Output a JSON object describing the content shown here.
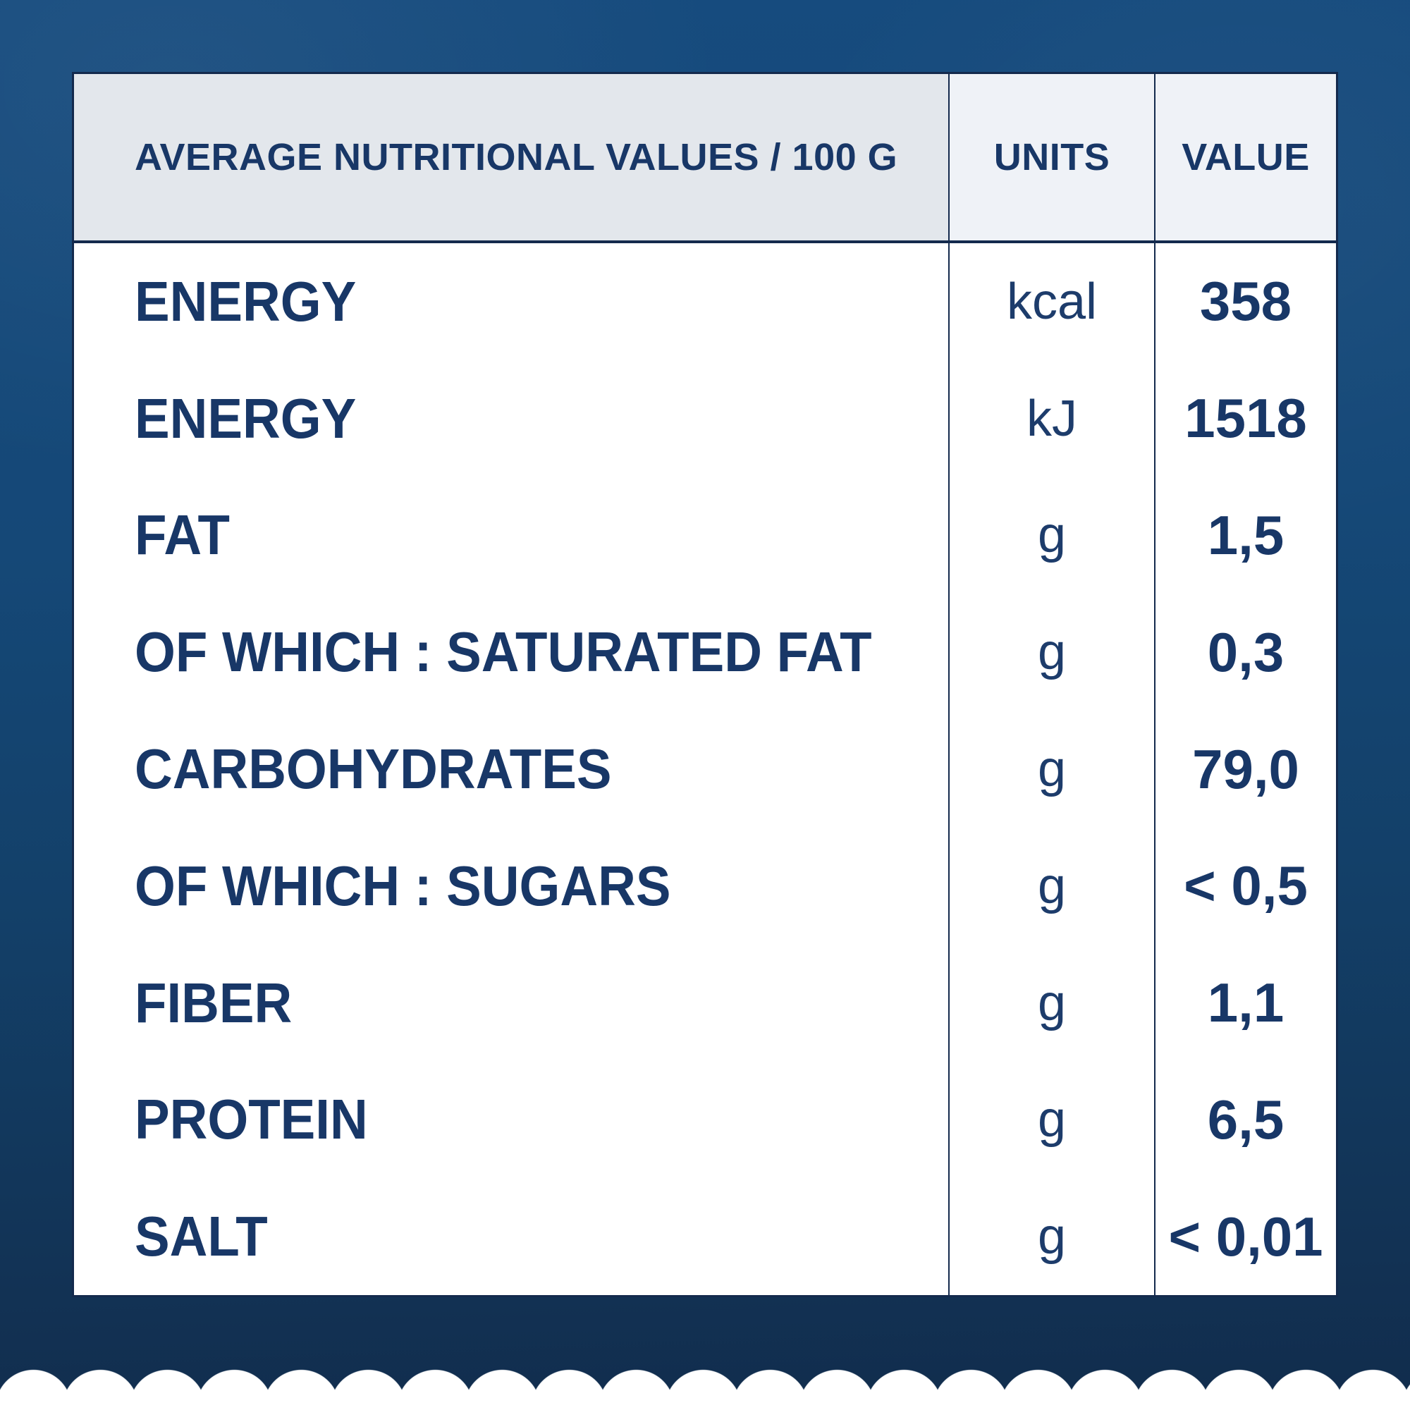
{
  "table": {
    "header": {
      "label": "AVERAGE NUTRITIONAL VALUES / 100 G",
      "units": "UNITS",
      "value": "VALUE"
    },
    "rows": [
      {
        "label": "ENERGY",
        "unit": "kcal",
        "value": "358"
      },
      {
        "label": "ENERGY",
        "unit": "kJ",
        "value": "1518"
      },
      {
        "label": "FAT",
        "unit": "g",
        "value": "1,5"
      },
      {
        "label": "OF WHICH : SATURATED FAT",
        "unit": "g",
        "value": "0,3"
      },
      {
        "label": "CARBOHYDRATES",
        "unit": "g",
        "value": "79,0"
      },
      {
        "label": "OF WHICH : SUGARS",
        "unit": "g",
        "value": "< 0,5"
      },
      {
        "label": "FIBER",
        "unit": "g",
        "value": "1,1"
      },
      {
        "label": "PROTEIN",
        "unit": "g",
        "value": "6,5"
      },
      {
        "label": "SALT",
        "unit": "g",
        "value": "< 0,01"
      }
    ]
  },
  "colors": {
    "background_top": "#164b7e",
    "background_bottom": "#112c4c",
    "panel_body": "#ffffff",
    "header_label_cell": "#e3e7ec",
    "header_units_value_cells": "#eff2f7",
    "border": "#142a4d",
    "text": "#183767",
    "scallop": "#ffffff"
  }
}
